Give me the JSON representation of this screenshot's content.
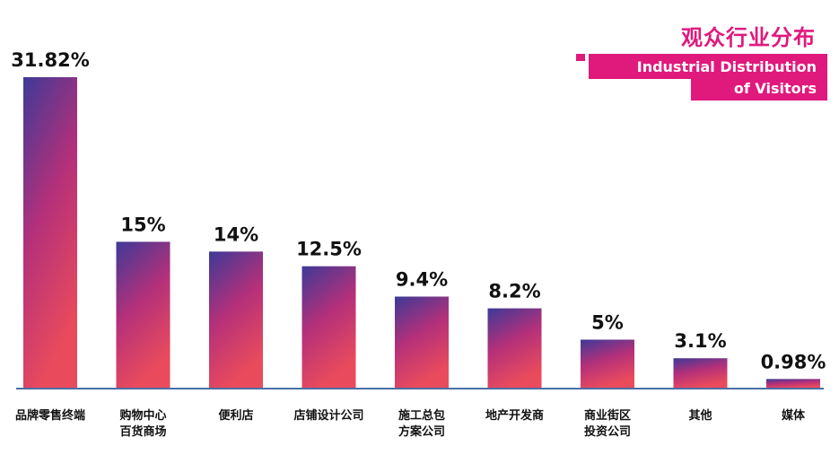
{
  "title": {
    "cn": "观众行业分布",
    "en_line1": "Industrial Distribution",
    "en_line2": "of Visitors"
  },
  "colors": {
    "accent": "#e0197d",
    "bar_top": "#3d3a97",
    "bar_mid": "#b4307a",
    "bar_bottom": "#ea4b5c",
    "axis": "#4a6fa5"
  },
  "chart_data": {
    "type": "bar",
    "categories": [
      [
        "品牌零售终端"
      ],
      [
        "购物中心",
        "百货商场"
      ],
      [
        "便利店"
      ],
      [
        "店铺设计公司"
      ],
      [
        "施工总包",
        "方案公司"
      ],
      [
        "地产开发商"
      ],
      [
        "商业街区",
        "投资公司"
      ],
      [
        "其他"
      ],
      [
        "媒体"
      ]
    ],
    "values": [
      31.82,
      15,
      14,
      12.5,
      9.4,
      8.2,
      5,
      3.1,
      0.98
    ],
    "data_labels": [
      "31.82%",
      "15%",
      "14%",
      "12.5%",
      "9.4%",
      "8.2%",
      "5%",
      "3.1%",
      "0.98%"
    ],
    "ylim": [
      0,
      32
    ],
    "grid": false,
    "legend": "none"
  }
}
